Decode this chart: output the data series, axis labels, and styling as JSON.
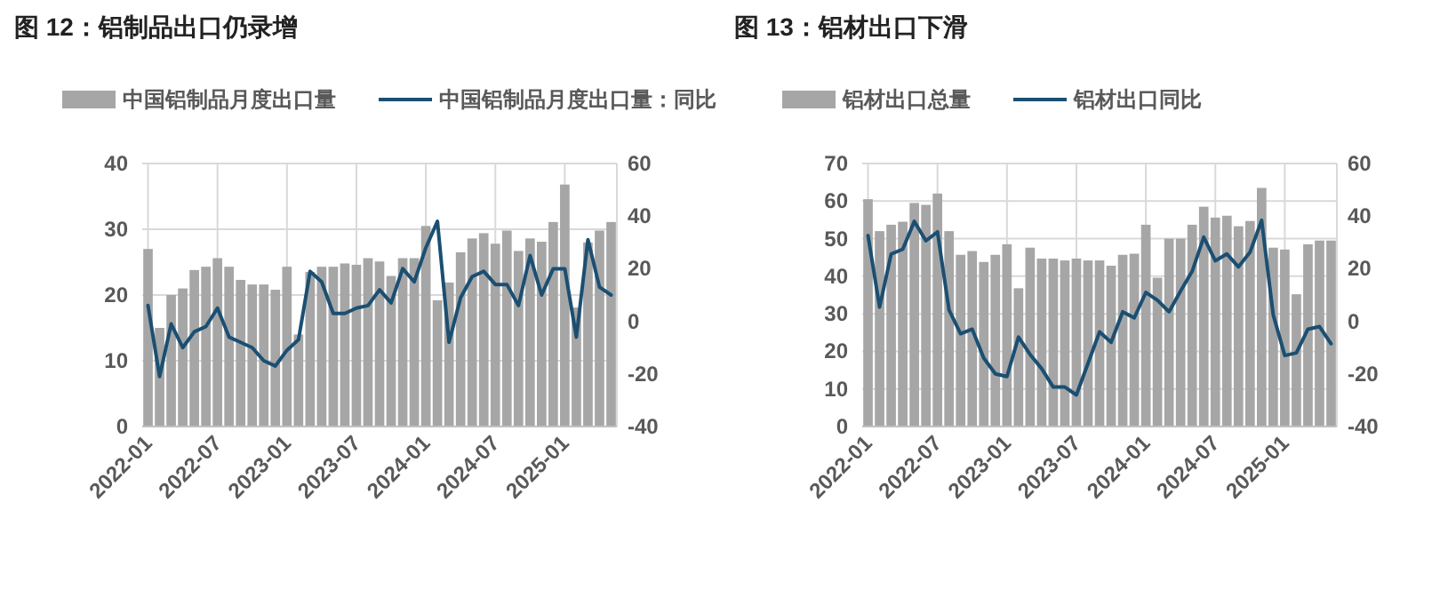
{
  "chart_data": [
    {
      "type": "bar",
      "title": "图 12：铝制品出口仍录增",
      "categories": [
        "2022-01",
        null,
        null,
        null,
        null,
        null,
        "2022-07",
        null,
        null,
        null,
        null,
        null,
        "2023-01",
        null,
        null,
        null,
        null,
        null,
        "2023-07",
        null,
        null,
        null,
        null,
        null,
        "2024-01",
        null,
        null,
        null,
        null,
        null,
        "2024-07",
        null,
        null,
        null,
        null,
        null,
        "2025-01",
        null,
        null,
        null,
        null
      ],
      "series": [
        {
          "name": "中国铝制品月度出口量",
          "color": "#a6a6a6",
          "values": [
            27,
            15,
            20,
            21,
            23.8,
            24.3,
            25.6,
            24.3,
            22.3,
            21.6,
            21.6,
            20.8,
            24.3,
            14,
            23.5,
            24.3,
            24.3,
            24.8,
            24.6,
            25.6,
            25.1,
            22.9,
            25.6,
            25.6,
            30.5,
            19.2,
            21.9,
            26.5,
            28.6,
            29.4,
            27.8,
            29.8,
            26.7,
            28.6,
            28.1,
            31.1,
            36.8,
            18.1,
            28,
            29.8,
            31.1
          ]
        },
        {
          "name": "中国铝制品月度出口量：同比",
          "type": "line",
          "axis": "y2",
          "color": "#1b4f72",
          "values": [
            6,
            -21,
            -1,
            -10,
            -4,
            -2,
            5,
            -6,
            -8,
            -10,
            -15,
            -17,
            -11,
            -7,
            19,
            15,
            3,
            3,
            5,
            6,
            12,
            7,
            20,
            15,
            28,
            38,
            -8,
            9,
            17,
            19,
            14,
            14,
            6,
            25,
            10,
            20,
            20,
            -6,
            31,
            13,
            10
          ]
        }
      ],
      "ylim": [
        0,
        40
      ],
      "yticks": [
        0,
        10,
        20,
        30,
        40
      ],
      "y2lim": [
        -40,
        60
      ],
      "y2ticks": [
        -40,
        -20,
        0,
        20,
        40,
        60
      ],
      "grid": true,
      "legend": "top"
    },
    {
      "type": "bar",
      "title": "图 13：铝材出口下滑",
      "categories": [
        "2022-01",
        null,
        null,
        null,
        null,
        null,
        "2022-07",
        null,
        null,
        null,
        null,
        null,
        "2023-01",
        null,
        null,
        null,
        null,
        null,
        "2023-07",
        null,
        null,
        null,
        null,
        null,
        "2024-01",
        null,
        null,
        null,
        null,
        null,
        "2024-07",
        null,
        null,
        null,
        null,
        null,
        "2025-01",
        null,
        null,
        null,
        null
      ],
      "series": [
        {
          "name": "铝材出口总量",
          "color": "#a6a6a6",
          "values": [
            60.5,
            52,
            53.7,
            54.5,
            59.5,
            59,
            62,
            52,
            45.7,
            46.7,
            43.8,
            45.7,
            48.5,
            36.8,
            47.6,
            44.7,
            44.7,
            44.2,
            44.7,
            44.2,
            44.2,
            42.8,
            45.7,
            46,
            53.7,
            39.6,
            50,
            50,
            53.7,
            58.5,
            55.6,
            56.1,
            53.3,
            54.7,
            63.5,
            47.6,
            47.1,
            35.2,
            48.5,
            49.5,
            49.5
          ]
        },
        {
          "name": "铝材出口同比",
          "type": "line",
          "axis": "y2",
          "color": "#1b4f72",
          "values": [
            32.6,
            5.4,
            25.6,
            27.4,
            38,
            30.6,
            34,
            4.3,
            -4.7,
            -3,
            -14,
            -20,
            -21,
            -6,
            -12.6,
            -18,
            -25,
            -25,
            -28,
            -16,
            -4,
            -8,
            3.6,
            1.3,
            11,
            8,
            3.6,
            11.5,
            19,
            32,
            23,
            25.6,
            20.7,
            26.3,
            38.4,
            2.5,
            -13,
            -12,
            -3,
            -2,
            -8.5
          ]
        }
      ],
      "ylim": [
        0,
        70
      ],
      "yticks": [
        0,
        10,
        20,
        30,
        40,
        50,
        60,
        70
      ],
      "y2lim": [
        -40,
        60
      ],
      "y2ticks": [
        -40,
        -20,
        0,
        20,
        40,
        60
      ],
      "grid": true,
      "legend": "top"
    }
  ]
}
